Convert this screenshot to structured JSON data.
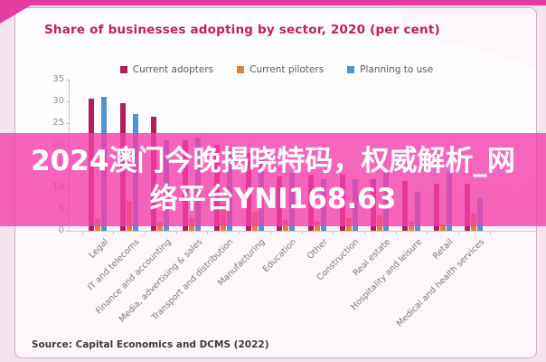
{
  "page": {
    "source_note": "Source: Capital Economics and DCMS (2022)"
  },
  "overlay": {
    "line1": "2024澳门今晚揭晓特码，权威解析_网",
    "line2": "络平台YNI168.63"
  },
  "colors": {
    "title": "#c02060",
    "adopters": "#b11e5c",
    "piloters": "#e0813a",
    "planning": "#4e95d1",
    "overlay_band": "#f23eaa",
    "axis": "#c8c8c8",
    "tick_text": "#909090",
    "xlabel_text": "#7a7a7a"
  },
  "chart_data": {
    "type": "bar",
    "title": "Share of businesses adopting by sector, 2020 (per cent)",
    "xlabel": "",
    "ylabel": "",
    "ylim": [
      0,
      35
    ],
    "yticks": [
      0,
      5,
      10,
      15,
      20,
      25,
      30,
      35
    ],
    "grid": false,
    "legend_position": "top",
    "categories": [
      "Legal",
      "IT and telecoms",
      "Finance and accounting",
      "Media, advertising & sales",
      "Transport and distribution",
      "Manufacturing",
      "Education",
      "Other",
      "Construction",
      "Real estate",
      "Hospitality and leisure",
      "Retail",
      "Medical and health services"
    ],
    "series": [
      {
        "name": "Current adopters",
        "color": "#b11e5c",
        "values": [
          30.5,
          29.5,
          26.5,
          21,
          20,
          18,
          12.5,
          13,
          13,
          12,
          11.5,
          11,
          11
        ]
      },
      {
        "name": "Current piloters",
        "color": "#e0813a",
        "values": [
          3,
          7,
          2,
          3,
          6,
          4.5,
          2.5,
          2,
          3,
          3.5,
          2,
          1.5,
          4
        ]
      },
      {
        "name": "Planning to use",
        "color": "#4e95d1",
        "values": [
          31,
          27,
          21,
          21.5,
          19,
          17.5,
          13.5,
          12,
          12,
          13.5,
          9,
          13.5,
          7.5
        ]
      }
    ]
  }
}
